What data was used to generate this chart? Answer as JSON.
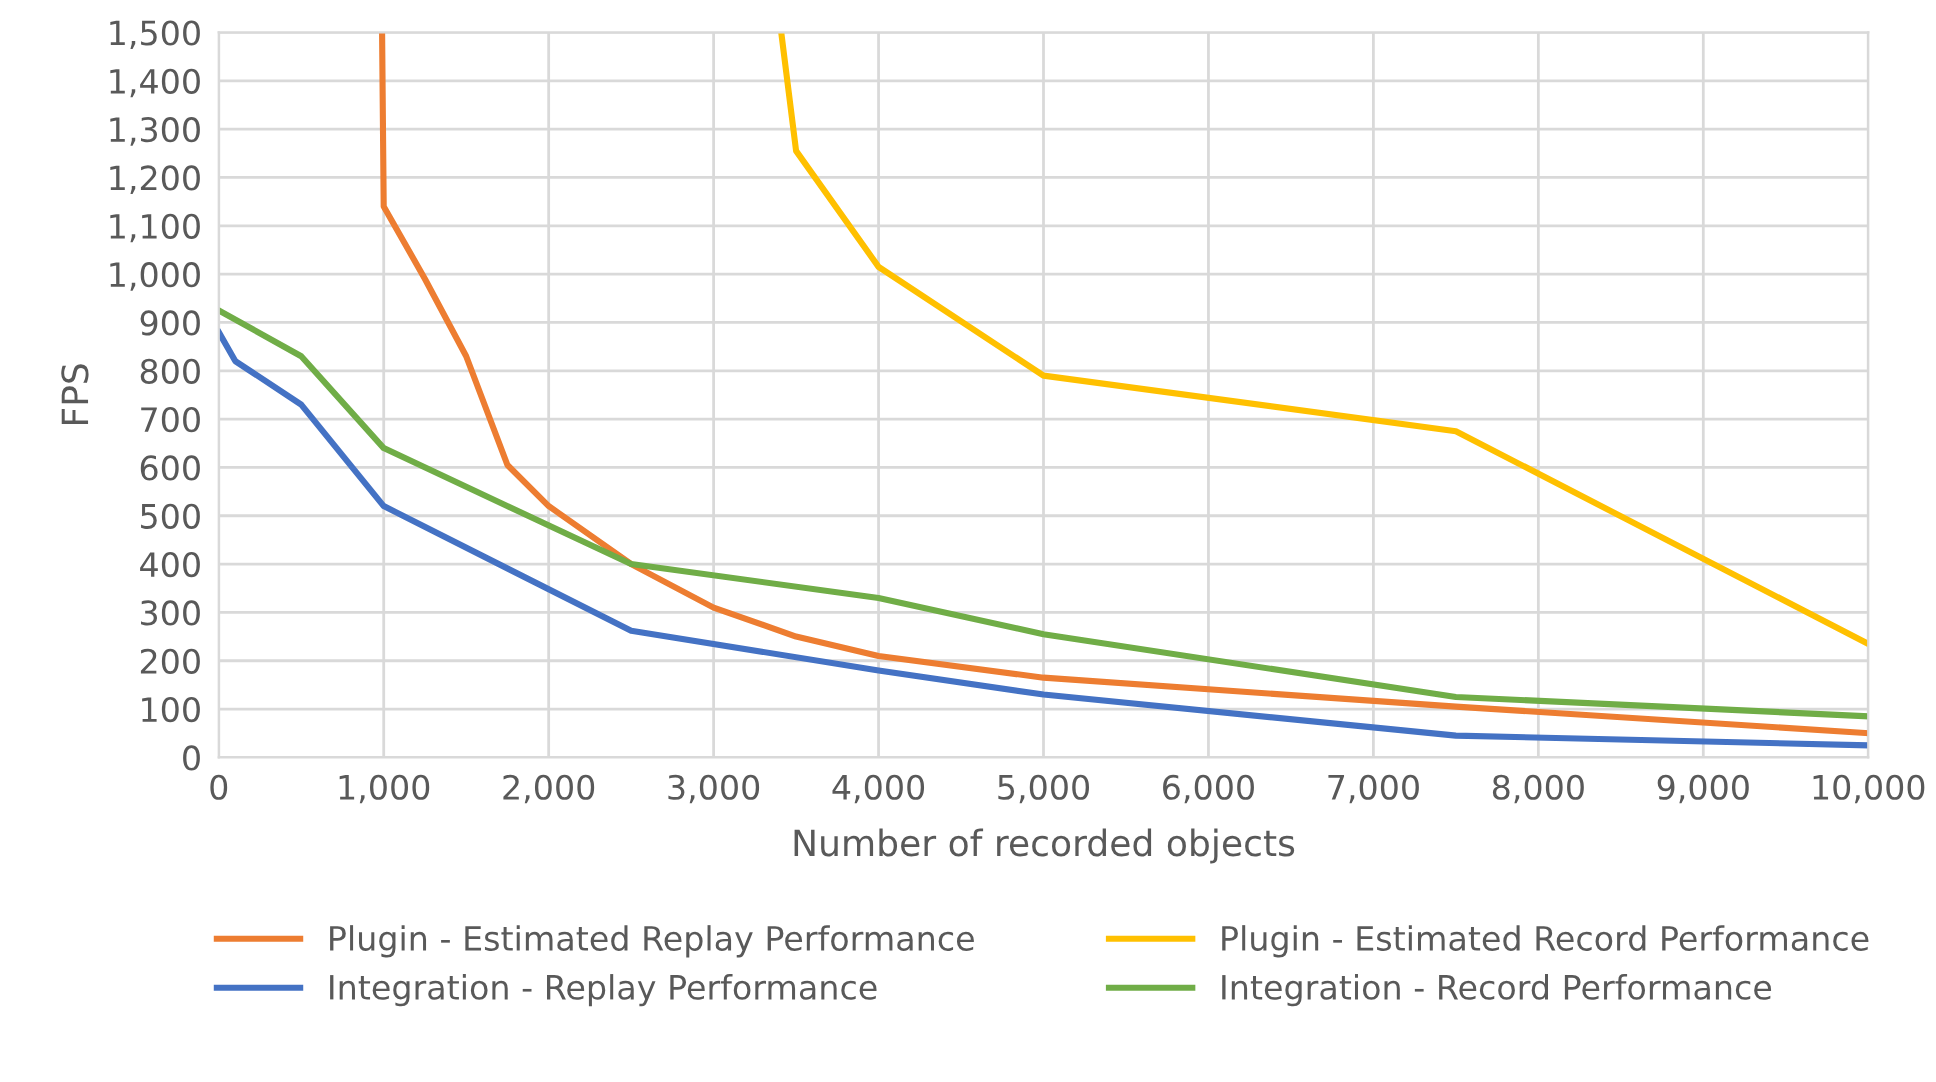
{
  "chart_data": {
    "type": "line",
    "xlabel": "Number of recorded objects",
    "ylabel": "FPS",
    "xlim": [
      0,
      10000
    ],
    "xticks": [
      {
        "value": 0,
        "label": "0"
      },
      {
        "value": 1000,
        "label": "1,000"
      },
      {
        "value": 2000,
        "label": "2,000"
      },
      {
        "value": 3000,
        "label": "3,000"
      },
      {
        "value": 4000,
        "label": "4,000"
      },
      {
        "value": 5000,
        "label": "5,000"
      },
      {
        "value": 6000,
        "label": "6,000"
      },
      {
        "value": 7000,
        "label": "7,000"
      },
      {
        "value": 8000,
        "label": "8,000"
      },
      {
        "value": 9000,
        "label": "9,000"
      },
      {
        "value": 10000,
        "label": "10,000"
      }
    ],
    "ylim": [
      0,
      1500
    ],
    "yticks": [
      0,
      100,
      200,
      300,
      400,
      500,
      600,
      700,
      800,
      900,
      {
        "value": 1000,
        "label": "1,000"
      },
      {
        "value": 1100,
        "label": "1,100"
      },
      {
        "value": 1200,
        "label": "1,200"
      },
      {
        "value": 1300,
        "label": "1,300"
      },
      {
        "value": 1400,
        "label": "1,400"
      },
      {
        "value": 1500,
        "label": "1,500"
      }
    ],
    "grid": true,
    "legend": "bottom",
    "marker": "none",
    "line_style": "solid",
    "series": [
      {
        "name": "Plugin - Estimated Replay Performance",
        "color": "#ed7d31",
        "x": [
          990,
          1000,
          1250,
          1500,
          1750,
          2000,
          2500,
          3000,
          3500,
          4000,
          5000,
          7500,
          10000
        ],
        "values": [
          1500,
          1140,
          990,
          830,
          605,
          520,
          400,
          310,
          250,
          210,
          165,
          105,
          50
        ]
      },
      {
        "name": "Plugin - Estimated Record Performance",
        "color": "#ffc000",
        "x": [
          3410,
          3500,
          4000,
          5000,
          7500,
          10000
        ],
        "values": [
          1500,
          1255,
          1015,
          790,
          675,
          235
        ]
      },
      {
        "name": "Integration - Replay Performance",
        "color": "#4472c4",
        "x": [
          0,
          100,
          500,
          1000,
          2500,
          4000,
          5000,
          7500,
          10000
        ],
        "values": [
          880,
          820,
          730,
          520,
          262,
          180,
          130,
          45,
          25
        ]
      },
      {
        "name": "Integration - Record Performance",
        "color": "#70ad47",
        "x": [
          0,
          500,
          1000,
          2500,
          4000,
          5000,
          7500,
          10000
        ],
        "values": [
          925,
          830,
          640,
          400,
          330,
          255,
          125,
          85
        ]
      }
    ]
  }
}
